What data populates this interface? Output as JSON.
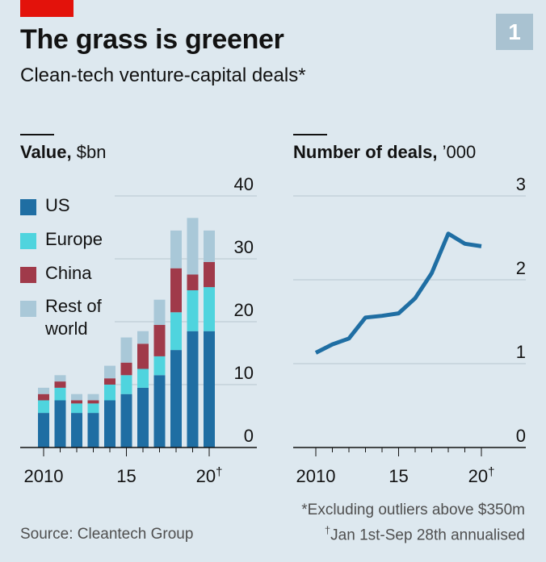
{
  "header": {
    "title": "The grass is greener",
    "subtitle": "Clean-tech venture-capital deals*",
    "badge": "1"
  },
  "colors": {
    "background": "#dde8ef",
    "accent_red": "#e3120b",
    "us": "#1f6ea3",
    "europe": "#4fd4de",
    "china": "#a03a4a",
    "rest_of_world": "#a9c8d8",
    "line": "#1f6ea3",
    "grid": "#b8c6cf"
  },
  "chart_data": [
    {
      "type": "bar",
      "stacked": true,
      "title": "Value,",
      "unit": "$bn",
      "categories": [
        "2010",
        "2011",
        "2012",
        "2013",
        "2014",
        "2015",
        "2016",
        "2017",
        "2018",
        "2019",
        "2020"
      ],
      "x_tick_labels": [
        "2010",
        "15",
        "20"
      ],
      "x_tick_dagger": "†",
      "ylim": [
        0,
        40
      ],
      "y_ticks": [
        0,
        10,
        20,
        30,
        40
      ],
      "grid": true,
      "series": [
        {
          "name": "US",
          "values": [
            5.5,
            7.5,
            5.5,
            5.5,
            7.5,
            8.5,
            9.5,
            11.5,
            15.5,
            18.5,
            18.5
          ]
        },
        {
          "name": "Europe",
          "values": [
            2,
            2,
            1.5,
            1.5,
            2.5,
            3,
            3,
            3,
            6,
            6.5,
            7
          ]
        },
        {
          "name": "China",
          "values": [
            1,
            1,
            0.5,
            0.5,
            1,
            2,
            4,
            5,
            7,
            2.5,
            4
          ]
        },
        {
          "name": "Rest of world",
          "values": [
            1,
            1,
            1,
            1,
            2,
            4,
            2,
            4,
            6,
            9,
            5
          ]
        }
      ],
      "legend": [
        "US",
        "Europe",
        "China",
        "Rest of world"
      ]
    },
    {
      "type": "line",
      "title": "Number of deals,",
      "unit": "’000",
      "x": [
        2010,
        2011,
        2012,
        2013,
        2014,
        2015,
        2016,
        2017,
        2018,
        2019,
        2020
      ],
      "x_tick_labels": [
        "2010",
        "15",
        "20"
      ],
      "x_tick_dagger": "†",
      "y": [
        1.13,
        1.23,
        1.3,
        1.55,
        1.57,
        1.6,
        1.78,
        2.08,
        2.55,
        2.43,
        2.4
      ],
      "ylim": [
        0,
        3
      ],
      "y_ticks": [
        0,
        1,
        2,
        3
      ],
      "grid": true
    }
  ],
  "footnotes": {
    "star": "*Excluding outliers above $350m",
    "dagger_mark": "†",
    "dagger": "Jan 1st-Sep 28th annualised"
  },
  "source": "Source: Cleantech Group"
}
